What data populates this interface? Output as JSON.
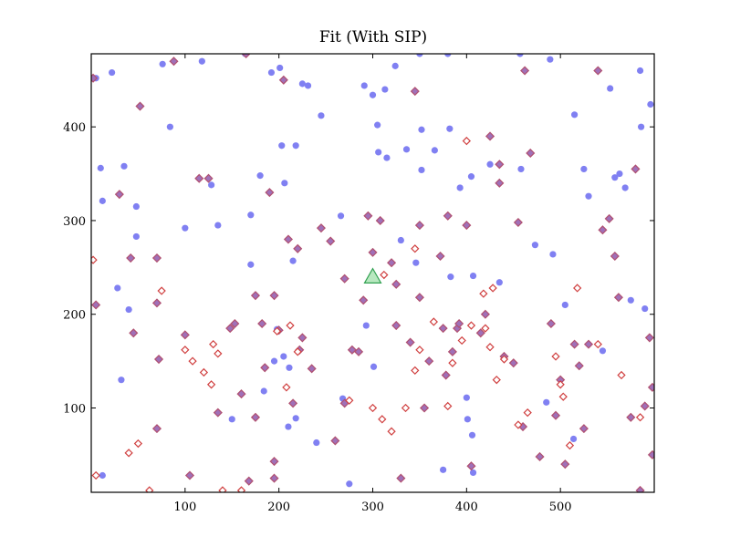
{
  "chart_data": {
    "type": "scatter",
    "title": "Fit (With SIP)",
    "xlabel": "",
    "ylabel": "",
    "xlim": [
      0,
      600
    ],
    "ylim": [
      10,
      478
    ],
    "x_ticks": [
      100,
      200,
      300,
      400,
      500
    ],
    "y_ticks": [
      100,
      200,
      300,
      400
    ],
    "grid": false,
    "series": [
      {
        "marker": "circle",
        "color": "#8080f2",
        "points": [
          [
            5,
            452
          ],
          [
            10,
            356
          ],
          [
            12,
            321
          ],
          [
            12,
            28
          ],
          [
            22,
            458
          ],
          [
            28,
            228
          ],
          [
            32,
            130
          ],
          [
            35,
            358
          ],
          [
            40,
            205
          ],
          [
            48,
            315
          ],
          [
            48,
            283
          ],
          [
            76,
            467
          ],
          [
            84,
            400
          ],
          [
            100,
            292
          ],
          [
            118,
            470
          ],
          [
            128,
            338
          ],
          [
            135,
            295
          ],
          [
            150,
            88
          ],
          [
            164,
            478
          ],
          [
            170,
            306
          ],
          [
            170,
            253
          ],
          [
            180,
            348
          ],
          [
            184,
            118
          ],
          [
            192,
            458
          ],
          [
            195,
            150
          ],
          [
            198,
            184
          ],
          [
            201,
            463
          ],
          [
            203,
            380
          ],
          [
            205,
            155
          ],
          [
            206,
            340
          ],
          [
            210,
            80
          ],
          [
            211,
            143
          ],
          [
            215,
            257
          ],
          [
            218,
            380
          ],
          [
            218,
            89
          ],
          [
            225,
            446
          ],
          [
            231,
            444
          ],
          [
            240,
            63
          ],
          [
            245,
            412
          ],
          [
            266,
            305
          ],
          [
            268,
            110
          ],
          [
            275,
            19
          ],
          [
            291,
            444
          ],
          [
            293,
            188
          ],
          [
            300,
            434
          ],
          [
            301,
            144
          ],
          [
            305,
            402
          ],
          [
            306,
            373
          ],
          [
            313,
            440
          ],
          [
            315,
            367
          ],
          [
            324,
            465
          ],
          [
            330,
            279
          ],
          [
            336,
            376
          ],
          [
            346,
            255
          ],
          [
            350,
            478
          ],
          [
            352,
            397
          ],
          [
            352,
            354
          ],
          [
            366,
            375
          ],
          [
            375,
            34
          ],
          [
            380,
            478
          ],
          [
            382,
            398
          ],
          [
            383,
            240
          ],
          [
            393,
            335
          ],
          [
            400,
            111
          ],
          [
            401,
            88
          ],
          [
            405,
            347
          ],
          [
            406,
            71
          ],
          [
            407,
            241
          ],
          [
            407,
            31
          ],
          [
            425,
            360
          ],
          [
            435,
            234
          ],
          [
            457,
            478
          ],
          [
            458,
            355
          ],
          [
            473,
            274
          ],
          [
            485,
            106
          ],
          [
            489,
            472
          ],
          [
            492,
            264
          ],
          [
            505,
            210
          ],
          [
            514,
            67
          ],
          [
            515,
            413
          ],
          [
            525,
            355
          ],
          [
            530,
            326
          ],
          [
            545,
            161
          ],
          [
            553,
            441
          ],
          [
            558,
            346
          ],
          [
            563,
            350
          ],
          [
            569,
            335
          ],
          [
            575,
            215
          ],
          [
            585,
            460
          ],
          [
            586,
            400
          ],
          [
            590,
            206
          ],
          [
            596,
            424
          ]
        ]
      },
      {
        "marker": "diamond-filled",
        "color": "#b05070",
        "points": [
          [
            2,
            452
          ],
          [
            5,
            210
          ],
          [
            30,
            328
          ],
          [
            42,
            260
          ],
          [
            45,
            180
          ],
          [
            52,
            422
          ],
          [
            70,
            260
          ],
          [
            70,
            212
          ],
          [
            72,
            152
          ],
          [
            70,
            78
          ],
          [
            88,
            470
          ],
          [
            100,
            178
          ],
          [
            105,
            28
          ],
          [
            115,
            345
          ],
          [
            125,
            345
          ],
          [
            135,
            95
          ],
          [
            148,
            185
          ],
          [
            153,
            190
          ],
          [
            160,
            115
          ],
          [
            165,
            478
          ],
          [
            168,
            22
          ],
          [
            175,
            220
          ],
          [
            175,
            90
          ],
          [
            182,
            190
          ],
          [
            185,
            143
          ],
          [
            190,
            330
          ],
          [
            195,
            220
          ],
          [
            195,
            43
          ],
          [
            195,
            25
          ],
          [
            200,
            183
          ],
          [
            205,
            450
          ],
          [
            210,
            280
          ],
          [
            215,
            105
          ],
          [
            220,
            270
          ],
          [
            222,
            162
          ],
          [
            225,
            175
          ],
          [
            235,
            142
          ],
          [
            245,
            292
          ],
          [
            255,
            278
          ],
          [
            260,
            65
          ],
          [
            270,
            238
          ],
          [
            270,
            105
          ],
          [
            278,
            162
          ],
          [
            285,
            160
          ],
          [
            290,
            215
          ],
          [
            295,
            305
          ],
          [
            300,
            266
          ],
          [
            308,
            300
          ],
          [
            320,
            255
          ],
          [
            325,
            232
          ],
          [
            325,
            188
          ],
          [
            330,
            25
          ],
          [
            340,
            170
          ],
          [
            345,
            438
          ],
          [
            350,
            295
          ],
          [
            350,
            218
          ],
          [
            355,
            100
          ],
          [
            360,
            150
          ],
          [
            372,
            262
          ],
          [
            375,
            185
          ],
          [
            378,
            135
          ],
          [
            380,
            305
          ],
          [
            385,
            160
          ],
          [
            390,
            185
          ],
          [
            392,
            190
          ],
          [
            400,
            295
          ],
          [
            405,
            38
          ],
          [
            415,
            180
          ],
          [
            420,
            200
          ],
          [
            425,
            390
          ],
          [
            435,
            360
          ],
          [
            435,
            340
          ],
          [
            440,
            155
          ],
          [
            450,
            148
          ],
          [
            455,
            298
          ],
          [
            460,
            80
          ],
          [
            462,
            460
          ],
          [
            468,
            372
          ],
          [
            478,
            48
          ],
          [
            490,
            190
          ],
          [
            495,
            92
          ],
          [
            500,
            130
          ],
          [
            505,
            40
          ],
          [
            515,
            168
          ],
          [
            520,
            145
          ],
          [
            525,
            78
          ],
          [
            530,
            168
          ],
          [
            540,
            460
          ],
          [
            545,
            290
          ],
          [
            552,
            302
          ],
          [
            558,
            262
          ],
          [
            562,
            218
          ],
          [
            575,
            90
          ],
          [
            580,
            355
          ],
          [
            585,
            12
          ],
          [
            590,
            102
          ],
          [
            595,
            175
          ],
          [
            598,
            122
          ],
          [
            598,
            50
          ]
        ]
      },
      {
        "marker": "diamond-open",
        "color": "#d04040",
        "points": [
          [
            2,
            258
          ],
          [
            5,
            28
          ],
          [
            40,
            52
          ],
          [
            50,
            62
          ],
          [
            62,
            12
          ],
          [
            75,
            225
          ],
          [
            100,
            162
          ],
          [
            108,
            150
          ],
          [
            120,
            138
          ],
          [
            128,
            125
          ],
          [
            130,
            168
          ],
          [
            135,
            158
          ],
          [
            140,
            12
          ],
          [
            160,
            12
          ],
          [
            198,
            182
          ],
          [
            208,
            122
          ],
          [
            212,
            188
          ],
          [
            220,
            160
          ],
          [
            275,
            108
          ],
          [
            300,
            100
          ],
          [
            310,
            88
          ],
          [
            312,
            242
          ],
          [
            320,
            75
          ],
          [
            335,
            100
          ],
          [
            345,
            270
          ],
          [
            345,
            140
          ],
          [
            350,
            162
          ],
          [
            365,
            192
          ],
          [
            380,
            102
          ],
          [
            385,
            148
          ],
          [
            395,
            172
          ],
          [
            400,
            385
          ],
          [
            405,
            188
          ],
          [
            418,
            222
          ],
          [
            420,
            185
          ],
          [
            425,
            165
          ],
          [
            428,
            228
          ],
          [
            432,
            130
          ],
          [
            440,
            152
          ],
          [
            455,
            82
          ],
          [
            465,
            95
          ],
          [
            495,
            155
          ],
          [
            500,
            125
          ],
          [
            503,
            112
          ],
          [
            510,
            60
          ],
          [
            518,
            228
          ],
          [
            540,
            168
          ],
          [
            565,
            135
          ],
          [
            585,
            90
          ]
        ]
      },
      {
        "marker": "triangle",
        "color": "#30a050",
        "points": [
          [
            300,
            240
          ]
        ]
      }
    ]
  }
}
